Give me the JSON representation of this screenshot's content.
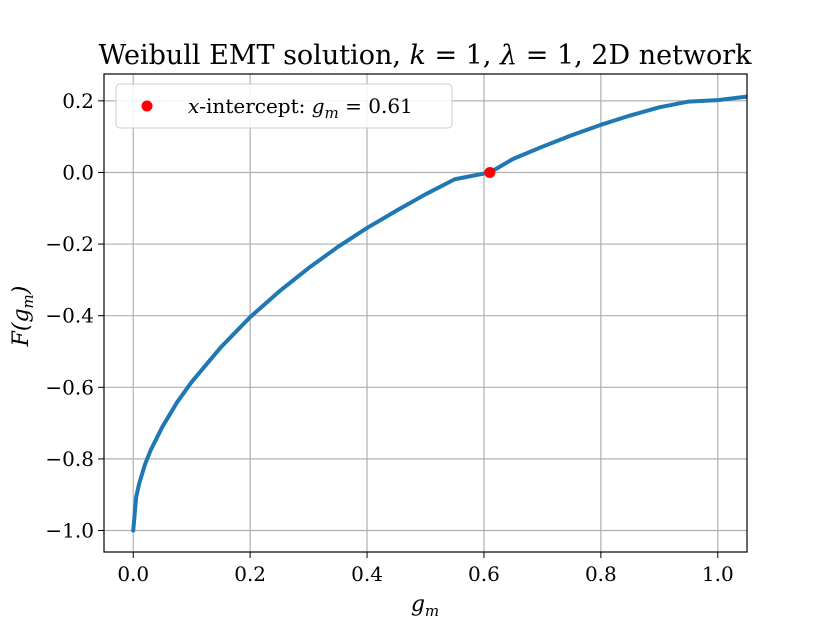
{
  "chart_data": {
    "type": "line",
    "title_parts": [
      "Weibull EMT solution, ",
      "k",
      " = 1, ",
      "λ",
      " = 1, 2D network"
    ],
    "xlabel_base": "g",
    "xlabel_sub": "m",
    "ylabel_pre": "F(",
    "ylabel_base": "g",
    "ylabel_sub": "m",
    "ylabel_post": ")",
    "xlim": [
      -0.05,
      1.05
    ],
    "ylim": [
      -1.06,
      0.275
    ],
    "xticks": [
      0.0,
      0.2,
      0.4,
      0.6,
      0.8,
      1.0
    ],
    "xtick_labels": [
      "0.0",
      "0.2",
      "0.4",
      "0.6",
      "0.8",
      "1.0"
    ],
    "yticks": [
      0.2,
      0.0,
      -0.2,
      -0.4,
      -0.6,
      -0.8,
      -1.0
    ],
    "ytick_labels": [
      "0.2",
      "0.0",
      "−0.2",
      "−0.4",
      "−0.6",
      "−0.8",
      "−1.0"
    ],
    "grid": true,
    "legend_position": "upper-left",
    "series": [
      {
        "color": "#1f77b4",
        "x": [
          0.0,
          0.005,
          0.01,
          0.02,
          0.03,
          0.05,
          0.075,
          0.1,
          0.15,
          0.2,
          0.25,
          0.3,
          0.35,
          0.4,
          0.45,
          0.5,
          0.55,
          0.61,
          0.65,
          0.7,
          0.75,
          0.8,
          0.85,
          0.9,
          0.95,
          1.0,
          1.05
        ],
        "y": [
          -1.0,
          -0.907,
          -0.87,
          -0.816,
          -0.775,
          -0.71,
          -0.642,
          -0.585,
          -0.488,
          -0.404,
          -0.332,
          -0.267,
          -0.208,
          -0.155,
          -0.107,
          -0.061,
          -0.019,
          0.0,
          0.038,
          0.072,
          0.104,
          0.133,
          0.159,
          0.182,
          0.198,
          0.202,
          0.212
        ]
      }
    ],
    "marker": {
      "x": 0.61,
      "y": 0.0,
      "color": "#ff0000",
      "legend_pre": "x",
      "legend_mid": "-intercept: ",
      "legend_var": "g",
      "legend_sub": "m",
      "legend_post": " = 0.61"
    }
  }
}
